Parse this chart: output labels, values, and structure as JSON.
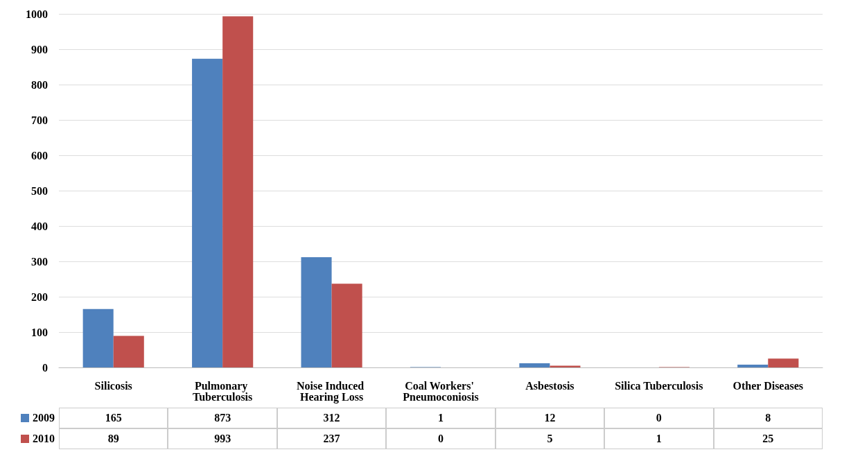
{
  "chart_data": {
    "type": "bar",
    "categories": [
      "Silicosis",
      "Pulmonary Tuberculosis",
      "Noise Induced Hearing Loss",
      "Coal Workers' Pneumoconiosis",
      "Asbestosis",
      "Silica Tuberculosis",
      "Other Diseases"
    ],
    "series": [
      {
        "name": "2009",
        "color": "#4f81bd",
        "values": [
          165,
          873,
          312,
          1,
          12,
          0,
          8
        ]
      },
      {
        "name": "2010",
        "color": "#c0504d",
        "values": [
          89,
          993,
          237,
          0,
          5,
          1,
          25
        ]
      }
    ],
    "ylim": [
      0,
      1000
    ],
    "yticks": [
      0,
      100,
      200,
      300,
      400,
      500,
      600,
      700,
      800,
      900,
      1000
    ],
    "grid": "y",
    "legend": "bottom left",
    "data_labels": true
  }
}
